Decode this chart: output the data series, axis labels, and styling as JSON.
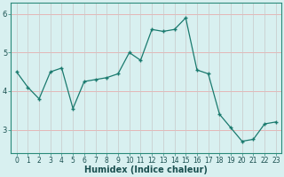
{
  "x": [
    0,
    1,
    2,
    3,
    4,
    5,
    6,
    7,
    8,
    9,
    10,
    11,
    12,
    13,
    14,
    15,
    16,
    17,
    18,
    19,
    20,
    21,
    22,
    23
  ],
  "y": [
    4.5,
    4.1,
    3.8,
    4.5,
    4.6,
    3.55,
    4.25,
    4.3,
    4.35,
    4.45,
    5.0,
    4.8,
    5.6,
    5.55,
    5.6,
    5.9,
    4.55,
    4.45,
    3.4,
    3.05,
    2.7,
    2.75,
    3.15,
    3.2
  ],
  "line_color": "#1a7a6e",
  "marker": "+",
  "marker_size": 4,
  "bg_color": "#d8f0f0",
  "grid_color_h": "#e8a0a0",
  "grid_color_v": "#c8c8c8",
  "xlabel": "Humidex (Indice chaleur)",
  "xlim": [
    -0.5,
    23.5
  ],
  "ylim": [
    2.4,
    6.3
  ],
  "yticks": [
    3,
    4,
    5,
    6
  ],
  "xticks": [
    0,
    1,
    2,
    3,
    4,
    5,
    6,
    7,
    8,
    9,
    10,
    11,
    12,
    13,
    14,
    15,
    16,
    17,
    18,
    19,
    20,
    21,
    22,
    23
  ],
  "tick_fontsize": 5.5,
  "xlabel_fontsize": 7,
  "xlabel_bold": true
}
